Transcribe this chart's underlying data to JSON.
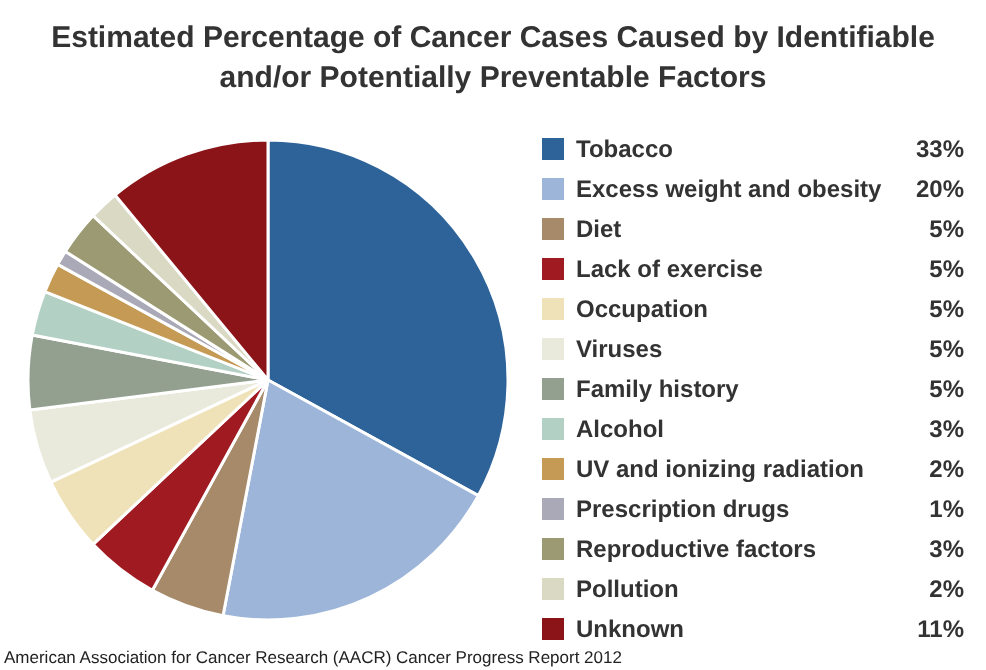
{
  "chart_data": {
    "type": "pie",
    "title": "Estimated Percentage of Cancer Cases Caused by Identifiable\nand/or Potentially Preventable Factors",
    "categories": [
      "Tobacco",
      "Excess weight and obesity",
      "Diet",
      "Lack of exercise",
      "Occupation",
      "Viruses",
      "Family history",
      "Alcohol",
      "UV and ionizing radiation",
      "Prescription drugs",
      "Reproductive factors",
      "Pollution",
      "Unknown"
    ],
    "values": [
      33,
      20,
      5,
      5,
      5,
      5,
      5,
      3,
      2,
      1,
      3,
      2,
      11
    ],
    "value_labels": [
      "33%",
      "20%",
      "5%",
      "5%",
      "5%",
      "5%",
      "5%",
      "3%",
      "2%",
      "1%",
      "3%",
      "2%",
      "11%"
    ],
    "colors": [
      "#2e6399",
      "#9db5d8",
      "#a68a6a",
      "#a01a22",
      "#f0e2b8",
      "#e9e9dc",
      "#93a08f",
      "#b3d0c5",
      "#c49a55",
      "#a9a9b8",
      "#9c9a73",
      "#dad9c3",
      "#8a1418"
    ],
    "legend": "right",
    "annotations": [
      "American Association for Cancer Research (AACR) Cancer Progress Report 2012"
    ]
  }
}
